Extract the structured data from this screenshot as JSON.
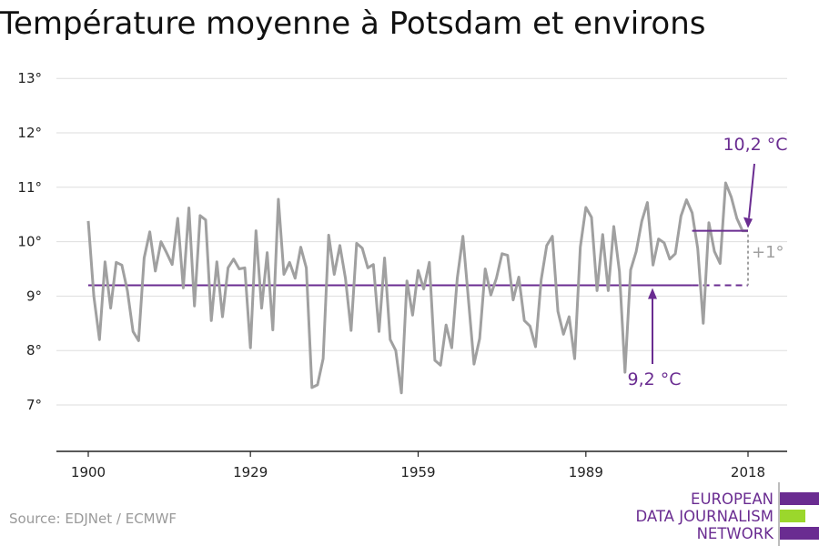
{
  "title": "Température moyenne à Potsdam et environs",
  "source": "Source: EDJNet / ECMWF",
  "logo": {
    "lines": [
      "EUROPEAN",
      "DATA JOURNALISM",
      "NETWORK"
    ],
    "colors": [
      "#6a2c91",
      "#9bd72c",
      "#6a2c91"
    ]
  },
  "colors": {
    "line": "#a0a0a0",
    "accent": "#6a2c91",
    "grid": "#dedede",
    "delta": "#a0a0a0"
  },
  "chart_data": {
    "type": "line",
    "title": "Température moyenne à Potsdam et environs",
    "xlabel": "",
    "ylabel": "",
    "x_ticks": [
      1900,
      1929,
      1959,
      1989,
      2018
    ],
    "y_ticks": [
      "7°",
      "8°",
      "9°",
      "10°",
      "11°",
      "12°",
      "13°"
    ],
    "xlim": [
      1900,
      2018
    ],
    "ylim": [
      6,
      13.2
    ],
    "grid": true,
    "series": [
      {
        "x": [
          1900,
          1901,
          1902,
          1903,
          1904,
          1905,
          1906,
          1907,
          1908,
          1909,
          1910,
          1911,
          1912,
          1913,
          1914,
          1915,
          1916,
          1917,
          1918,
          1919,
          1920,
          1921,
          1922,
          1923,
          1924,
          1925,
          1926,
          1927,
          1928,
          1929,
          1930,
          1931,
          1932,
          1933,
          1934,
          1935,
          1936,
          1937,
          1938,
          1939,
          1940,
          1941,
          1942,
          1943,
          1944,
          1945,
          1946,
          1947,
          1948,
          1949,
          1950,
          1951,
          1952,
          1953,
          1954,
          1955,
          1956,
          1957,
          1958,
          1959,
          1960,
          1961,
          1962,
          1963,
          1964,
          1965,
          1966,
          1967,
          1968,
          1969,
          1970,
          1971,
          1972,
          1973,
          1974,
          1975,
          1976,
          1977,
          1978,
          1979,
          1980,
          1981,
          1982,
          1983,
          1984,
          1985,
          1986,
          1987,
          1988,
          1989,
          1990,
          1991,
          1992,
          1993,
          1994,
          1995,
          1996,
          1997,
          1998,
          1999,
          2000,
          2001,
          2002,
          2003,
          2004,
          2005,
          2006,
          2007,
          2008,
          2009,
          2010,
          2011,
          2012,
          2013,
          2014,
          2015,
          2016,
          2017,
          2018
        ],
        "y": [
          10.38,
          9.0,
          8.2,
          9.63,
          8.78,
          9.62,
          9.57,
          9.1,
          8.35,
          8.18,
          9.7,
          10.18,
          9.46,
          10.0,
          9.8,
          9.58,
          10.43,
          9.15,
          10.62,
          8.82,
          10.48,
          10.4,
          8.55,
          9.63,
          8.62,
          9.52,
          9.68,
          9.5,
          9.52,
          8.05,
          10.2,
          8.78,
          9.8,
          8.38,
          10.78,
          9.4,
          9.62,
          9.33,
          9.9,
          9.52,
          7.32,
          7.37,
          7.85,
          10.12,
          9.4,
          9.93,
          9.33,
          8.37,
          9.97,
          9.88,
          9.52,
          9.58,
          8.35,
          9.7,
          8.2,
          8.0,
          7.22,
          9.28,
          8.65,
          9.47,
          9.13,
          9.62,
          7.82,
          7.73,
          8.47,
          8.05,
          9.33,
          10.1,
          8.93,
          7.75,
          8.22,
          9.5,
          9.02,
          9.33,
          9.78,
          9.75,
          8.93,
          9.35,
          8.55,
          8.45,
          8.07,
          9.3,
          9.93,
          10.1,
          8.72,
          8.3,
          8.62,
          7.85,
          9.9,
          10.63,
          10.45,
          9.1,
          10.13,
          9.1,
          10.28,
          9.45,
          7.6,
          9.48,
          9.82,
          10.38,
          10.72,
          9.57,
          10.05,
          9.98,
          9.68,
          9.78,
          10.47,
          10.77,
          10.53,
          9.88,
          8.5,
          10.35,
          9.82,
          9.6,
          11.08,
          10.82,
          10.43,
          10.2,
          10.2
        ]
      }
    ],
    "reference_lines": [
      {
        "value": 9.2,
        "label": "9,2 °C",
        "x_from": 1900,
        "x_to": 2018
      },
      {
        "value": 10.2,
        "label": "10,2 °C",
        "x_from": 2008,
        "x_to": 2018
      }
    ],
    "delta_label": "+1°"
  }
}
